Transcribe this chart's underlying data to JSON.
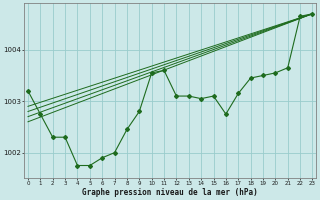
{
  "x": [
    0,
    1,
    2,
    3,
    4,
    5,
    6,
    7,
    8,
    9,
    10,
    11,
    12,
    13,
    14,
    15,
    16,
    17,
    18,
    19,
    20,
    21,
    22,
    23
  ],
  "line_main": [
    1003.2,
    1002.75,
    1002.3,
    1002.3,
    1001.75,
    1001.75,
    1001.9,
    1002.0,
    1002.45,
    1002.8,
    1003.55,
    1003.6,
    1003.1,
    1003.1,
    1003.05,
    1003.1,
    1002.75,
    1003.15,
    1003.45,
    1003.5,
    1003.55,
    1003.65,
    1004.65,
    1004.7
  ],
  "trend_lines": [
    {
      "x0": 0,
      "y0": 1002.6,
      "x1": 23,
      "y1": 1004.7
    },
    {
      "x0": 0,
      "y0": 1002.7,
      "x1": 23,
      "y1": 1004.7
    },
    {
      "x0": 0,
      "y0": 1002.8,
      "x1": 23,
      "y1": 1004.7
    },
    {
      "x0": 0,
      "y0": 1002.9,
      "x1": 23,
      "y1": 1004.7
    }
  ],
  "bg_color": "#cce8e8",
  "line_color": "#1e6b1e",
  "grid_color": "#99cccc",
  "xlabel": "Graphe pression niveau de la mer (hPa)",
  "yticks": [
    1002,
    1003,
    1004
  ],
  "xtick_labels": [
    "0",
    "1",
    "2",
    "3",
    "4",
    "5",
    "6",
    "7",
    "8",
    "9",
    "10",
    "11",
    "12",
    "13",
    "14",
    "15",
    "16",
    "17",
    "18",
    "19",
    "20",
    "21",
    "22",
    "23"
  ],
  "ylim": [
    1001.5,
    1004.9
  ],
  "xlim": [
    -0.3,
    23.3
  ]
}
